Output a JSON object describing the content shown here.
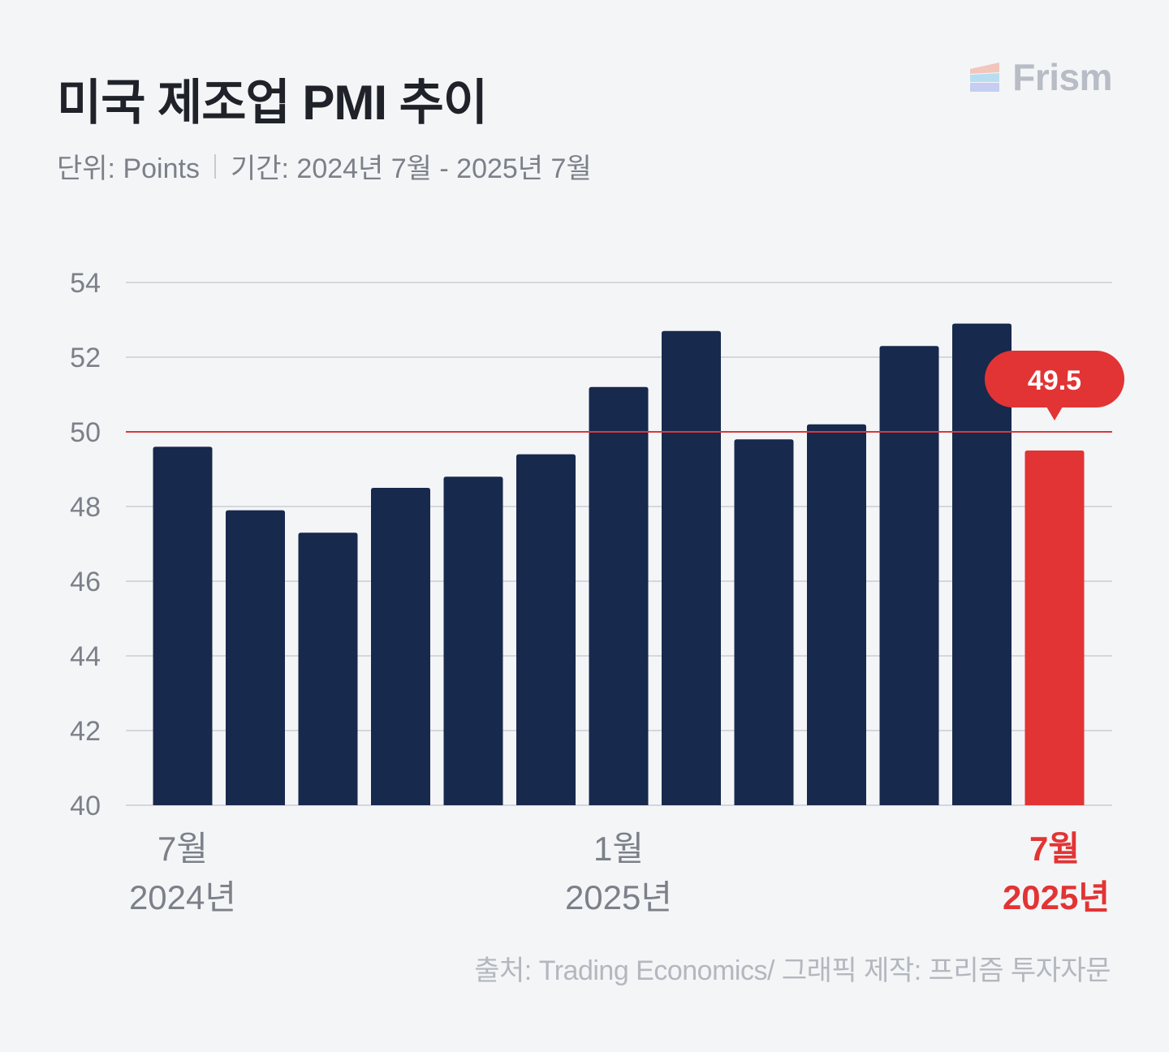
{
  "header": {
    "title": "미국 제조업 PMI 추이",
    "unit": "단위: Points",
    "period": "기간: 2024년 7월 - 2025년 7월"
  },
  "brand": {
    "name": "Frism",
    "icon": "frism-logo-icon"
  },
  "source": "출처: Trading Economics/ 그래픽 제작: 프리즘 투자자문",
  "colors": {
    "bar": "#17294d",
    "highlight": "#e23434",
    "grid": "#d4d7dd",
    "reference_line": "#d9383b",
    "tick_text": "#7b8089"
  },
  "chart_data": {
    "type": "bar",
    "title": "미국 제조업 PMI 추이",
    "ylim": [
      40,
      54
    ],
    "yticks": [
      40,
      42,
      44,
      46,
      48,
      50,
      52,
      54
    ],
    "reference_line": 50,
    "grid": true,
    "categories": [
      "2024-07",
      "2024-08",
      "2024-09",
      "2024-10",
      "2024-11",
      "2024-12",
      "2025-01",
      "2025-02",
      "2025-03",
      "2025-04",
      "2025-05",
      "2025-06",
      "2025-07"
    ],
    "values": [
      49.6,
      47.9,
      47.3,
      48.5,
      48.8,
      49.4,
      51.2,
      52.7,
      49.8,
      50.2,
      52.3,
      52.9,
      49.5
    ],
    "highlight_index": 12,
    "callout": {
      "index": 12,
      "text": "49.5"
    },
    "x_labels": [
      {
        "index": 0,
        "month": "7월",
        "year": "2024년",
        "highlight": false
      },
      {
        "index": 6,
        "month": "1월",
        "year": "2025년",
        "highlight": false
      },
      {
        "index": 12,
        "month": "7월",
        "year": "2025년",
        "highlight": true
      }
    ]
  }
}
